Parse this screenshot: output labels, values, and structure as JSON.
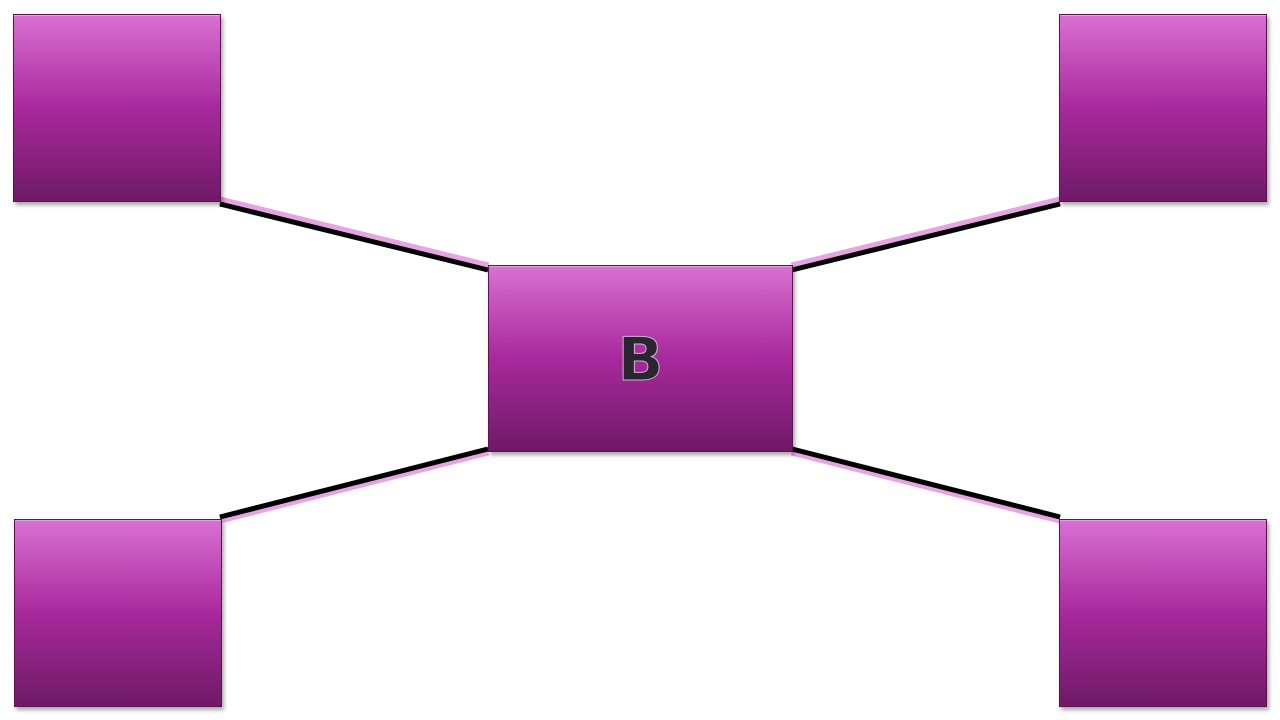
{
  "diagram": {
    "center_label": "B",
    "colors": {
      "box_top": "#d970d3",
      "box_mid": "#a8299c",
      "box_bottom": "#6e1a66",
      "box_border": "#5a1452",
      "connector": "#000000",
      "connector_glow": "#e59be0",
      "label": "#2a2530"
    },
    "nodes": [
      {
        "id": "top-left",
        "label": ""
      },
      {
        "id": "top-right",
        "label": ""
      },
      {
        "id": "bottom-left",
        "label": ""
      },
      {
        "id": "bottom-right",
        "label": ""
      }
    ]
  }
}
